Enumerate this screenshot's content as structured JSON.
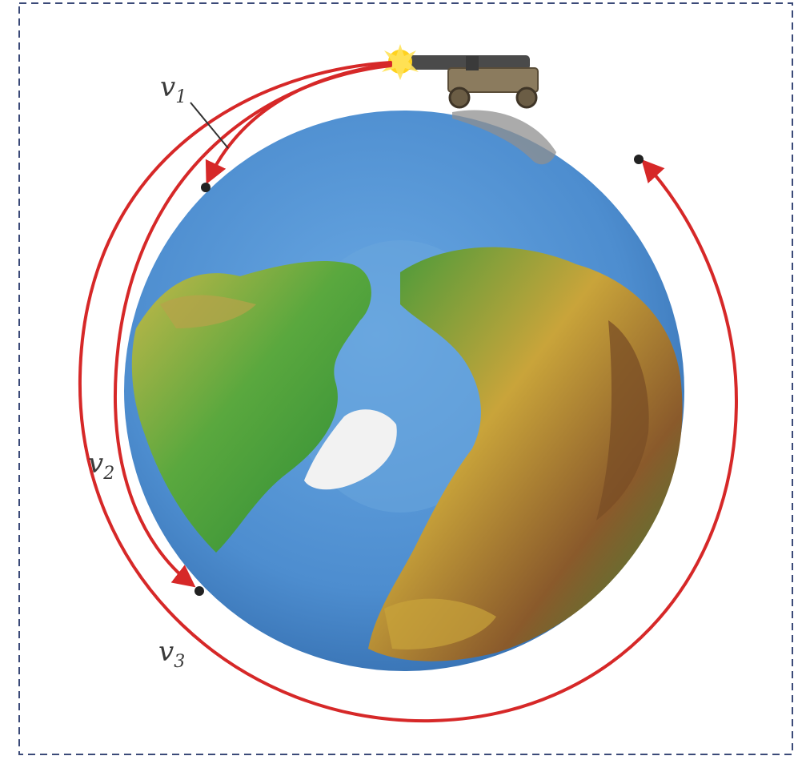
{
  "labels": {
    "v1": {
      "base": "v",
      "sub": "1"
    },
    "v2": {
      "base": "v",
      "sub": "2"
    },
    "v3": {
      "base": "v",
      "sub": "3"
    }
  },
  "colors": {
    "trajectory": "#d62828",
    "frame": "#3b4a78",
    "ocean": "#4f8fd0",
    "ocean_dark": "#3a76b8",
    "arctic_sea": "#6aa6dd",
    "land_green": "#2f8f3a",
    "land_yellow": "#c9b84a",
    "land_brown": "#8a5a2b",
    "ice": "#f2f2f2",
    "cannon": "#4a4a4a",
    "carriage": "#8b7b5e",
    "flash": "#ffd21f"
  },
  "icons": [
    "cannon-icon",
    "muzzle-flash-icon",
    "earth-globe-icon"
  ]
}
